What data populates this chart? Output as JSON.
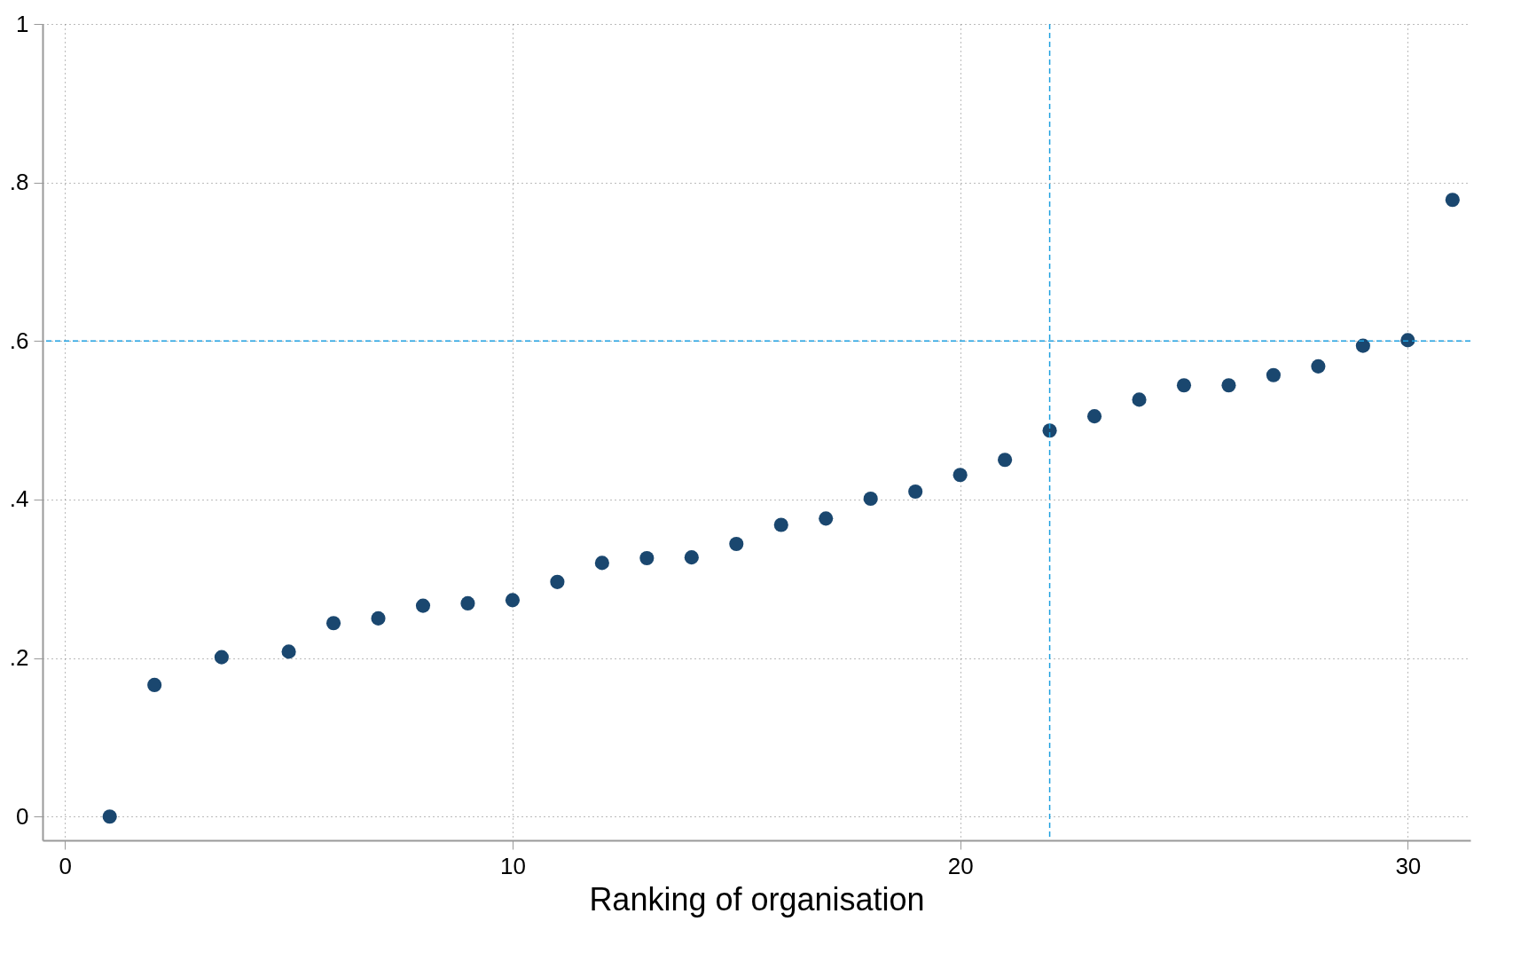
{
  "chart_data": {
    "type": "scatter",
    "xlabel": "Ranking of organisation",
    "x": [
      1,
      2,
      3.5,
      5,
      6,
      7,
      8,
      9,
      10,
      11,
      12,
      13,
      14,
      15,
      16,
      17,
      18,
      19,
      20,
      21,
      22,
      23,
      24,
      25,
      26,
      27,
      28,
      29,
      30,
      31
    ],
    "values": [
      0,
      0.166,
      0.201,
      0.208,
      0.244,
      0.25,
      0.266,
      0.269,
      0.273,
      0.296,
      0.32,
      0.326,
      0.327,
      0.344,
      0.368,
      0.376,
      0.401,
      0.41,
      0.431,
      0.45,
      0.487,
      0.505,
      0.526,
      0.544,
      0.544,
      0.557,
      0.568,
      0.594,
      0.601,
      0.778
    ],
    "color": "#1a476f",
    "marker": "circle",
    "xlim": [
      -0.5,
      31.4
    ],
    "xticks": [
      0,
      10,
      20,
      30
    ],
    "ylim": [
      -0.03,
      1
    ],
    "yticks": [
      0,
      {
        "value": 0.2,
        "label": ".2"
      },
      {
        "value": 0.4,
        "label": ".4"
      },
      {
        "value": 0.6,
        "label": ".6"
      },
      {
        "value": 0.8,
        "label": ".8"
      },
      1
    ],
    "grid": true,
    "ref_lines": [
      {
        "axis": "y",
        "value": 0.6,
        "color": "#1ea0e0",
        "line_style": "dashed"
      },
      {
        "axis": "x",
        "value": 22,
        "color": "#1ea0e0",
        "line_style": "dashed"
      }
    ]
  }
}
